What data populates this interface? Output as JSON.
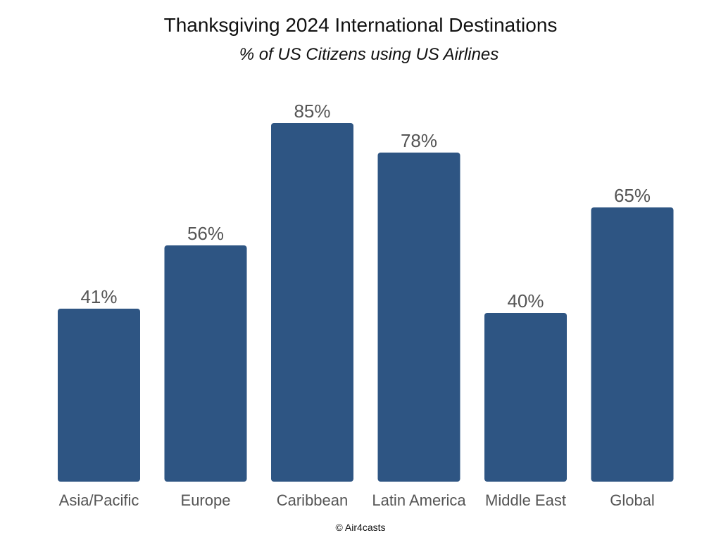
{
  "chart_data": {
    "type": "bar",
    "title": "Thanksgiving 2024 International Destinations",
    "subtitle": "% of US Citizens using US Airlines",
    "categories": [
      "Asia/Pacific",
      "Europe",
      "Caribbean",
      "Latin America",
      "Middle East",
      "Global"
    ],
    "values": [
      41,
      56,
      85,
      78,
      40,
      65
    ],
    "value_labels": [
      "41%",
      "56%",
      "85%",
      "78%",
      "40%",
      "65%"
    ],
    "ylim": [
      0,
      100
    ],
    "grid": false,
    "legend": "none",
    "bar_color": "#2e5583",
    "label_color": "#555555"
  },
  "footer": {
    "copyright": "© Air4casts"
  }
}
